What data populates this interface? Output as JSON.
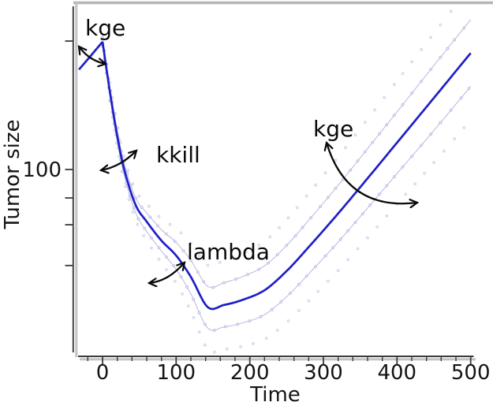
{
  "chart_data": {
    "type": "line",
    "title": "",
    "xlabel": "Time",
    "ylabel": "Tumor size",
    "yscale": "log",
    "x": [
      -32,
      -16,
      0,
      10,
      20,
      30,
      45,
      60,
      80,
      100,
      120,
      143,
      165,
      190,
      220,
      250,
      280,
      320,
      360,
      400,
      450,
      500
    ],
    "series": [
      {
        "name": "tumor-size-prediction",
        "role": "main",
        "values": [
          350,
          416,
          496,
          265,
          152,
          98,
          64,
          52,
          41,
          34,
          26,
          17.8,
          18.3,
          19.5,
          22,
          28,
          37.8,
          57.6,
          89.5,
          140,
          245,
          430
        ]
      },
      {
        "name": "upper-band",
        "role": "band",
        "values": [
          364,
          435,
          521,
          281,
          163,
          106,
          70,
          58,
          47,
          40,
          32,
          23.1,
          24.2,
          26.1,
          29.9,
          38.6,
          52.9,
          82,
          130,
          206,
          368,
          654
        ]
      },
      {
        "name": "lower-band",
        "role": "band",
        "values": [
          337,
          398,
          472,
          250,
          142,
          91,
          58,
          46,
          36,
          28.6,
          21,
          13.7,
          13.9,
          14.6,
          16.2,
          20.3,
          27,
          40.3,
          61.7,
          95,
          163,
          283
        ]
      },
      {
        "name": "upper-outer-percentile",
        "role": "dots",
        "values": [
          379,
          455,
          547,
          298,
          175,
          114,
          77,
          65,
          54,
          47.6,
          39.7,
          30.1,
          32,
          35,
          40.6,
          53.2,
          74,
          117,
          188,
          303,
          551,
          994
        ]
      },
      {
        "name": "lower-outer-percentile",
        "role": "dots",
        "values": [
          324,
          381,
          450,
          236,
          133,
          84,
          53,
          41,
          31,
          24,
          16.9,
          10.5,
          10.5,
          10.9,
          11.9,
          14.7,
          19.3,
          28.2,
          42.5,
          64.8,
          109,
          186
        ]
      }
    ],
    "xticks": [
      0,
      100,
      200,
      300,
      400,
      500
    ],
    "xtick_labels": [
      "0",
      "100",
      "200",
      "300",
      "400",
      "500"
    ],
    "x_minor_step": 20,
    "xlim": [
      -35,
      503
    ],
    "yticks": [
      500,
      100,
      70,
      50,
      30
    ],
    "ytick_labels": [
      "",
      "100",
      "",
      "",
      ""
    ],
    "ylim": [
      10,
      560
    ],
    "grid": false,
    "legend": "none"
  },
  "annotations": [
    {
      "text": "kge"
    },
    {
      "text": "kkill"
    },
    {
      "text": "lambda"
    },
    {
      "text": "kge"
    }
  ],
  "colors": {
    "main_curve": "#1f1fc8",
    "band": "#b7b7e3",
    "outer_dots": "#d3d3ee",
    "axis": "#3b3b3b",
    "axis_shadow": "#c3c3c3",
    "top_border": "#b5b5b5",
    "text": "#141414",
    "annotation": "#0a0a0a"
  }
}
